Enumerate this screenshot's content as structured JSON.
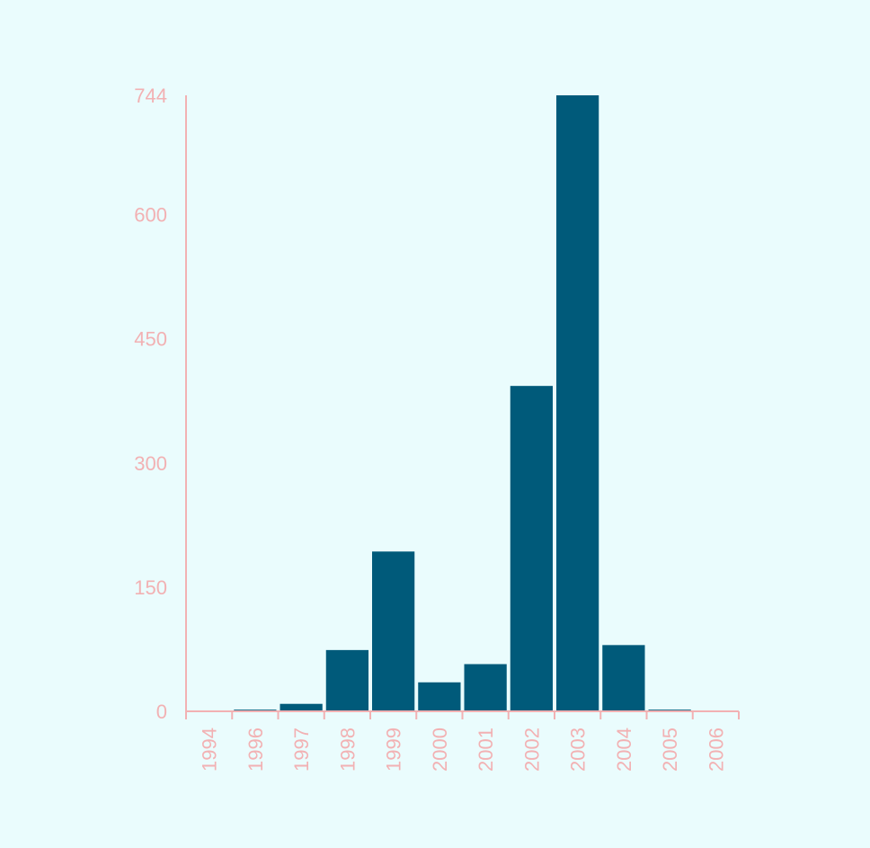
{
  "chart_data": {
    "type": "bar",
    "title": "",
    "xlabel": "",
    "ylabel": "",
    "categories": [
      "1994",
      "1996",
      "1997",
      "1998",
      "1999",
      "2000",
      "2001",
      "2002",
      "2003",
      "2004",
      "2005",
      "2006"
    ],
    "values": [
      0,
      2,
      9,
      74,
      193,
      35,
      57,
      393,
      744,
      80,
      2,
      0
    ],
    "ylim": [
      0,
      744
    ],
    "yticks": [
      "0",
      "150",
      "300",
      "450",
      "600",
      "744"
    ],
    "grid": false,
    "legend": "none",
    "colors": {
      "bar": "#005a7a",
      "axis": "#f2b1b3",
      "background": "#eafcfd"
    }
  }
}
